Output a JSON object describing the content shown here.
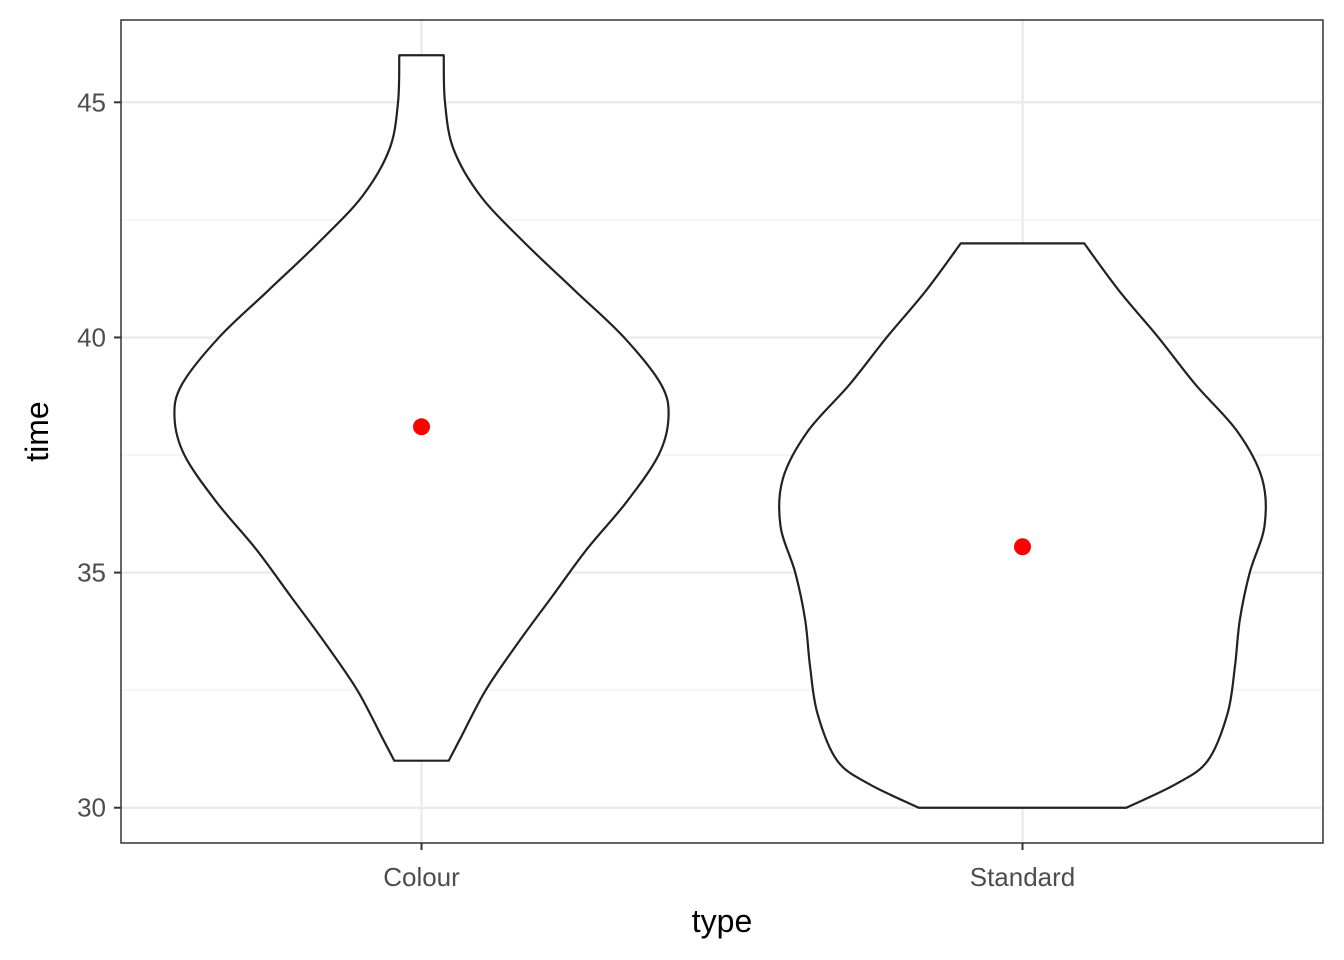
{
  "chart_data": {
    "type": "violin",
    "title": "",
    "xlabel": "type",
    "ylabel": "time",
    "categories": [
      "Colour",
      "Standard"
    ],
    "ylim": [
      29.25,
      46.75
    ],
    "y_ticks": [
      30,
      35,
      40,
      45
    ],
    "y_tick_labels": [
      "30",
      "35",
      "40",
      "45"
    ],
    "grid": true,
    "legend": "none",
    "violins": [
      {
        "category": "Colour",
        "min": 31,
        "max": 46,
        "profile": [
          [
            31.0,
            0.11
          ],
          [
            31.5,
            0.16
          ],
          [
            32.5,
            0.26
          ],
          [
            33.5,
            0.39
          ],
          [
            34.5,
            0.53
          ],
          [
            35.5,
            0.67
          ],
          [
            36.5,
            0.83
          ],
          [
            37.5,
            0.96
          ],
          [
            38.3,
            1.0
          ],
          [
            39.0,
            0.97
          ],
          [
            40.0,
            0.82
          ],
          [
            41.0,
            0.62
          ],
          [
            42.0,
            0.42
          ],
          [
            43.0,
            0.24
          ],
          [
            44.0,
            0.13
          ],
          [
            45.0,
            0.095
          ],
          [
            46.0,
            0.09
          ]
        ]
      },
      {
        "category": "Standard",
        "min": 30,
        "max": 42,
        "profile": [
          [
            30.0,
            0.42
          ],
          [
            30.5,
            0.62
          ],
          [
            31.0,
            0.75
          ],
          [
            32.0,
            0.83
          ],
          [
            33.0,
            0.86
          ],
          [
            34.0,
            0.88
          ],
          [
            35.0,
            0.92
          ],
          [
            36.0,
            0.98
          ],
          [
            37.0,
            0.97
          ],
          [
            38.0,
            0.87
          ],
          [
            39.0,
            0.7
          ],
          [
            40.0,
            0.55
          ],
          [
            41.0,
            0.39
          ],
          [
            42.0,
            0.25
          ]
        ]
      }
    ],
    "means": [
      {
        "category": "Colour",
        "value": 38.1
      },
      {
        "category": "Standard",
        "value": 35.55
      }
    ],
    "colors": {
      "violin_stroke": "#222222",
      "violin_fill": "#ffffff",
      "mean_point": "#ff0000",
      "grid_major": "#ebebeb",
      "grid_minor": "#f2f2f2",
      "panel_border": "#333333",
      "tick_label": "#4d4d4d",
      "axis_title": "#000000"
    }
  }
}
